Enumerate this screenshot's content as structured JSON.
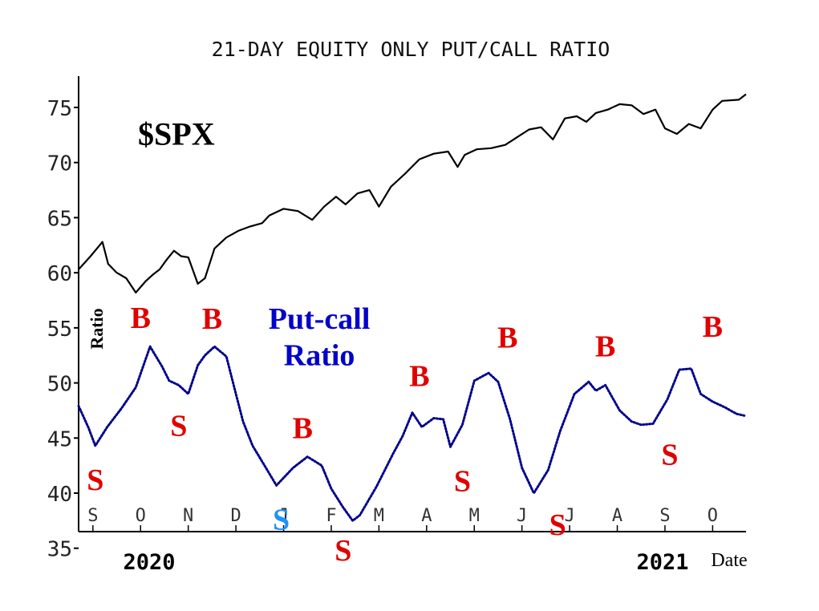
{
  "chart_data": {
    "type": "line",
    "title": "21-DAY EQUITY ONLY PUT/CALL RATIO",
    "ylabel": "Ratio",
    "xlabel": "Date",
    "ylim": [
      35,
      77
    ],
    "yticks": [
      35,
      40,
      45,
      50,
      55,
      60,
      65,
      70,
      75
    ],
    "month_ticks": [
      "S",
      "O",
      "N",
      "D",
      "J",
      "F",
      "M",
      "A",
      "M",
      "J",
      "J",
      "A",
      "S",
      "O"
    ],
    "year_labels": [
      "2020",
      "2021"
    ],
    "colors": {
      "spx": "#000000",
      "ratio": "#00008b",
      "buy": "#e00000",
      "sell": "#e00000",
      "blue_signal": "#1e90ff",
      "ratio_label": "#0000cc"
    },
    "series": [
      {
        "name": "$SPX",
        "x": [
          0,
          0.25,
          0.5,
          0.62,
          0.8,
          1.0,
          1.2,
          1.4,
          1.55,
          1.7,
          1.85,
          2.0,
          2.15,
          2.3,
          2.5,
          2.65,
          2.85,
          3.1,
          3.35,
          3.6,
          3.85,
          4.0,
          4.3,
          4.6,
          4.9,
          5.15,
          5.4,
          5.6,
          5.85,
          6.1,
          6.3,
          6.55,
          6.85,
          7.15,
          7.45,
          7.75,
          7.95,
          8.1,
          8.35,
          8.65,
          8.95,
          9.2,
          9.45,
          9.7,
          9.95,
          10.2,
          10.45,
          10.65,
          10.85,
          11.1,
          11.35,
          11.6,
          11.85,
          12.1,
          12.3,
          12.55,
          12.8,
          13.05,
          13.3,
          13.5,
          13.85,
          14.0
        ],
        "values": [
          60.3,
          61.5,
          62.8,
          60.8,
          60.0,
          59.5,
          58.2,
          59.2,
          59.8,
          60.3,
          61.2,
          62.0,
          61.5,
          61.4,
          59.0,
          59.5,
          62.2,
          63.2,
          63.8,
          64.2,
          64.5,
          65.2,
          65.8,
          65.6,
          64.8,
          66.0,
          66.9,
          66.2,
          67.2,
          67.5,
          66.0,
          67.8,
          69.0,
          70.3,
          70.8,
          71.0,
          69.6,
          70.7,
          71.2,
          71.3,
          71.6,
          72.3,
          73.0,
          73.2,
          72.1,
          74.0,
          74.2,
          73.7,
          74.5,
          74.8,
          75.3,
          75.2,
          74.4,
          74.8,
          73.1,
          72.6,
          73.5,
          73.1,
          74.8,
          75.6,
          75.7,
          76.2
        ]
      },
      {
        "name": "Put-call Ratio",
        "x": [
          0,
          0.2,
          0.35,
          0.6,
          0.9,
          1.2,
          1.5,
          1.75,
          1.9,
          2.1,
          2.3,
          2.5,
          2.65,
          2.85,
          3.1,
          3.3,
          3.45,
          3.65,
          3.9,
          4.15,
          4.5,
          4.8,
          5.1,
          5.3,
          5.55,
          5.75,
          5.9,
          6.25,
          6.6,
          6.8,
          7.0,
          7.2,
          7.45,
          7.65,
          7.8,
          8.05,
          8.3,
          8.6,
          8.8,
          9.05,
          9.3,
          9.55,
          9.85,
          10.1,
          10.4,
          10.7,
          10.85,
          11.05,
          11.35,
          11.6,
          11.8,
          12.05,
          12.35,
          12.6,
          12.85,
          13.05,
          13.3,
          13.55,
          13.8,
          14.0
        ],
        "values": [
          47.9,
          46.0,
          44.3,
          46.0,
          47.7,
          49.6,
          53.3,
          51.5,
          50.2,
          49.8,
          49.0,
          51.6,
          52.5,
          53.3,
          52.4,
          49.0,
          46.5,
          44.3,
          42.5,
          40.7,
          42.3,
          43.3,
          42.5,
          40.4,
          38.7,
          37.5,
          38.0,
          40.6,
          43.6,
          45.2,
          47.3,
          46.0,
          46.8,
          46.7,
          44.2,
          46.2,
          50.2,
          50.9,
          50.1,
          46.7,
          42.3,
          40.0,
          42.1,
          45.6,
          49.0,
          50.1,
          49.3,
          49.8,
          47.5,
          46.5,
          46.2,
          46.3,
          48.5,
          51.2,
          51.3,
          49.0,
          48.3,
          47.8,
          47.2,
          47.0
        ]
      }
    ],
    "annotations": [
      {
        "text": "$SPX",
        "x": 2.05,
        "y": 71.6,
        "kind": "label-black"
      },
      {
        "text": "Put-call",
        "x": 5.05,
        "y": 54.9,
        "kind": "label-blue"
      },
      {
        "text": "Ratio",
        "x": 5.05,
        "y": 51.6,
        "kind": "label-blue"
      },
      {
        "text": "S",
        "x": 0.35,
        "y": 40.3,
        "kind": "red"
      },
      {
        "text": "B",
        "x": 1.3,
        "y": 55.0,
        "kind": "red"
      },
      {
        "text": "S",
        "x": 2.1,
        "y": 45.2,
        "kind": "red"
      },
      {
        "text": "B",
        "x": 2.8,
        "y": 54.9,
        "kind": "red"
      },
      {
        "text": "S",
        "x": 4.25,
        "y": 36.7,
        "kind": "blue"
      },
      {
        "text": "B",
        "x": 4.7,
        "y": 45.0,
        "kind": "red"
      },
      {
        "text": "S",
        "x": 5.55,
        "y": 33.9,
        "kind": "red"
      },
      {
        "text": "B",
        "x": 7.15,
        "y": 49.7,
        "kind": "red"
      },
      {
        "text": "S",
        "x": 8.05,
        "y": 40.2,
        "kind": "red"
      },
      {
        "text": "B",
        "x": 9.0,
        "y": 53.2,
        "kind": "red"
      },
      {
        "text": "S",
        "x": 10.05,
        "y": 36.2,
        "kind": "red"
      },
      {
        "text": "B",
        "x": 11.05,
        "y": 52.4,
        "kind": "red"
      },
      {
        "text": "S",
        "x": 12.4,
        "y": 42.6,
        "kind": "red"
      },
      {
        "text": "B",
        "x": 13.3,
        "y": 54.2,
        "kind": "red"
      }
    ]
  }
}
